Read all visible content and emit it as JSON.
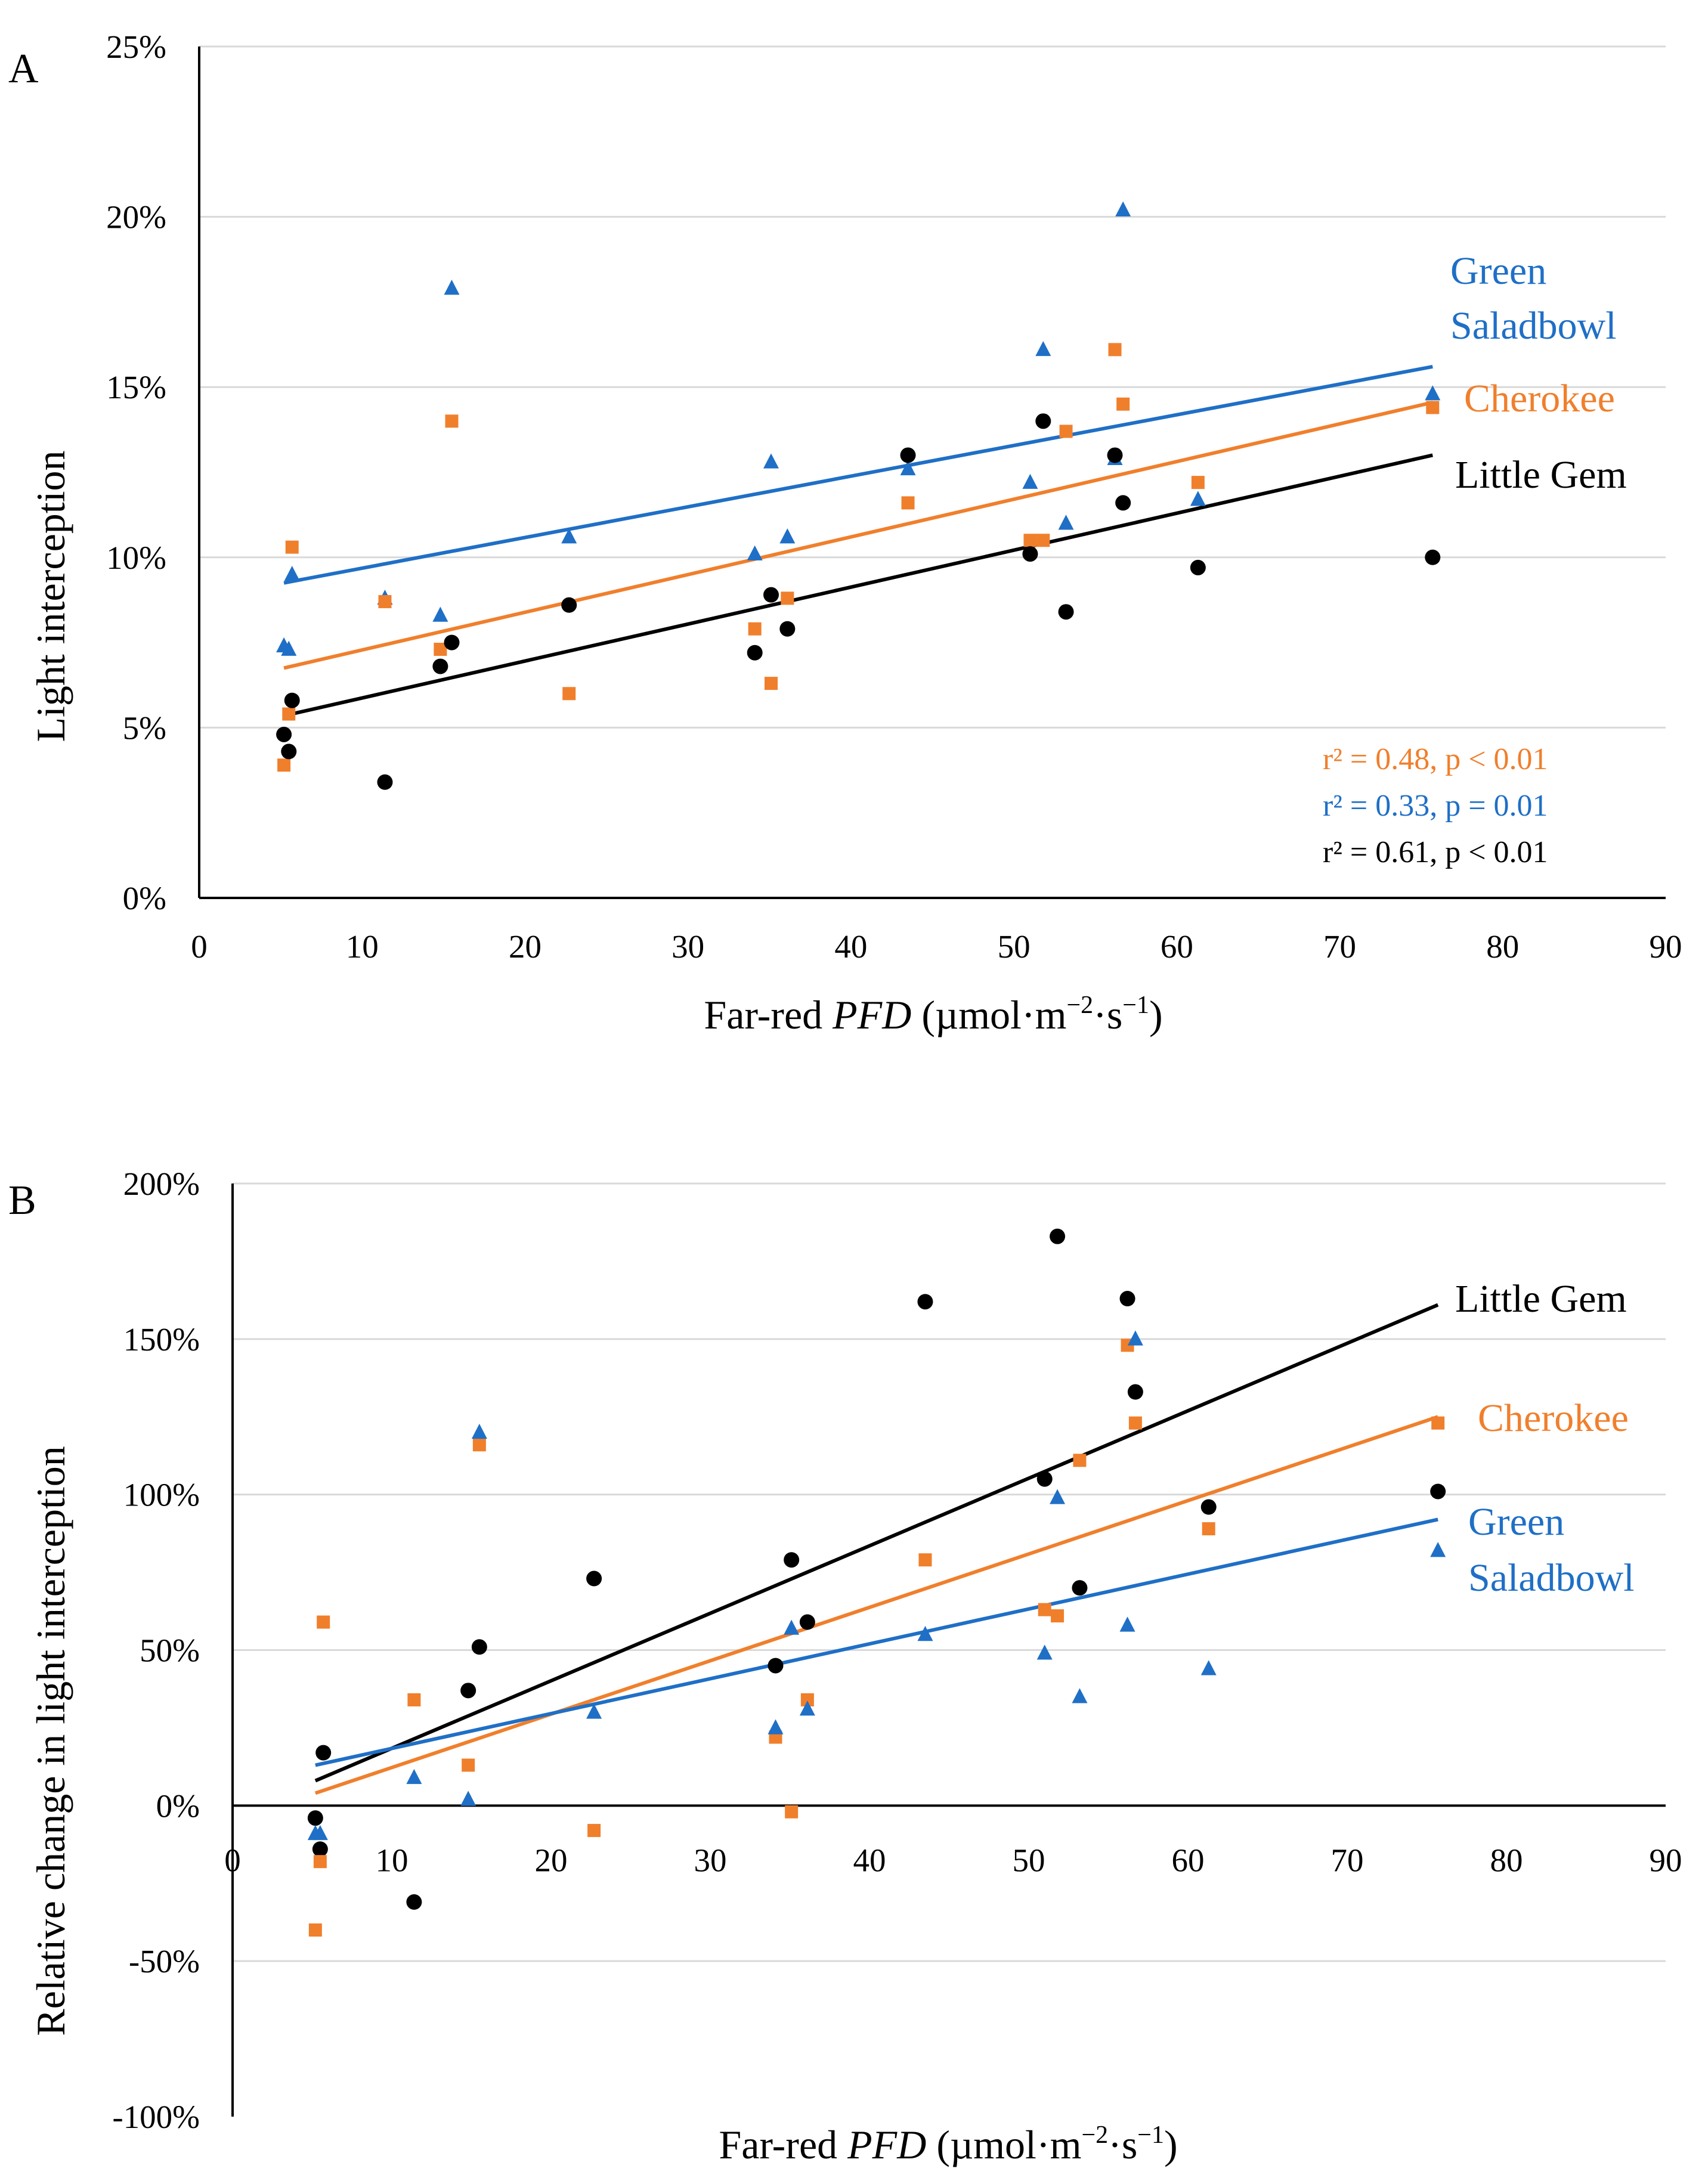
{
  "chart_data": [
    {
      "panel": "A",
      "type": "scatter",
      "xlabel": "Far-red PFD (µmol·m⁻²·s⁻¹)",
      "xlabel_parts": {
        "prefix": "Far-red ",
        "italic": "PFD",
        "units": " (µmol·m",
        "exp1": "−2",
        "mid": "·s",
        "exp2": "−1",
        "close": ")"
      },
      "ylabel": "Light interception",
      "xlim": [
        0,
        90
      ],
      "ylim": [
        0,
        0.25
      ],
      "x_ticks": [
        "0",
        "10",
        "20",
        "30",
        "40",
        "50",
        "60",
        "70",
        "80",
        "90"
      ],
      "x_tick_values": [
        0,
        10,
        20,
        30,
        40,
        50,
        60,
        70,
        80,
        90
      ],
      "y_ticks": [
        "0%",
        "5%",
        "10%",
        "15%",
        "20%",
        "25%"
      ],
      "y_tick_values": [
        0,
        0.05,
        0.1,
        0.15,
        0.2,
        0.25
      ],
      "grid": true,
      "x_label_row": "bottom",
      "series": [
        {
          "name": "Green Saladbowl",
          "label_lines": [
            "Green",
            "Saladbowl"
          ],
          "color": "#1f6fc6",
          "marker": "triangle",
          "points": [
            [
              5.2,
              0.074
            ],
            [
              5.5,
              0.073
            ],
            [
              5.7,
              0.095
            ],
            [
              11.4,
              0.088
            ],
            [
              14.8,
              0.083
            ],
            [
              15.5,
              0.179
            ],
            [
              22.7,
              0.106
            ],
            [
              34.1,
              0.101
            ],
            [
              35.1,
              0.128
            ],
            [
              36.1,
              0.106
            ],
            [
              43.5,
              0.126
            ],
            [
              51.0,
              0.122
            ],
            [
              51.8,
              0.161
            ],
            [
              53.2,
              0.11
            ],
            [
              56.2,
              0.129
            ],
            [
              56.7,
              0.202
            ],
            [
              61.3,
              0.117
            ],
            [
              75.7,
              0.148
            ]
          ],
          "trend": {
            "x": [
              5.2,
              75.7
            ],
            "y": [
              0.0925,
              0.156
            ]
          },
          "stat": "r² = 0.33, p = 0.01"
        },
        {
          "name": "Cherokee",
          "label_lines": [
            "Cherokee"
          ],
          "color": "#f07f2c",
          "marker": "square",
          "points": [
            [
              5.2,
              0.039
            ],
            [
              5.5,
              0.054
            ],
            [
              5.7,
              0.103
            ],
            [
              11.4,
              0.087
            ],
            [
              14.8,
              0.073
            ],
            [
              15.5,
              0.14
            ],
            [
              22.7,
              0.06
            ],
            [
              34.1,
              0.079
            ],
            [
              35.1,
              0.063
            ],
            [
              36.1,
              0.088
            ],
            [
              43.5,
              0.116
            ],
            [
              51.0,
              0.105
            ],
            [
              51.8,
              0.105
            ],
            [
              53.2,
              0.137
            ],
            [
              56.2,
              0.161
            ],
            [
              56.7,
              0.145
            ],
            [
              61.3,
              0.122
            ],
            [
              75.7,
              0.144
            ]
          ],
          "trend": {
            "x": [
              5.2,
              75.7
            ],
            "y": [
              0.0675,
              0.1455
            ]
          },
          "stat": "r² = 0.48, p < 0.01"
        },
        {
          "name": "Little Gem",
          "label_lines": [
            "Little Gem"
          ],
          "color": "#000000",
          "marker": "circle",
          "points": [
            [
              5.2,
              0.048
            ],
            [
              5.5,
              0.043
            ],
            [
              5.7,
              0.058
            ],
            [
              11.4,
              0.034
            ],
            [
              14.8,
              0.068
            ],
            [
              15.5,
              0.075
            ],
            [
              22.7,
              0.086
            ],
            [
              34.1,
              0.072
            ],
            [
              35.1,
              0.089
            ],
            [
              36.1,
              0.079
            ],
            [
              43.5,
              0.13
            ],
            [
              51.0,
              0.101
            ],
            [
              51.8,
              0.14
            ],
            [
              53.2,
              0.084
            ],
            [
              56.2,
              0.13
            ],
            [
              56.7,
              0.116
            ],
            [
              61.3,
              0.097
            ],
            [
              75.7,
              0.1
            ]
          ],
          "trend": {
            "x": [
              5.2,
              75.7
            ],
            "y": [
              0.0535,
              0.13
            ]
          },
          "stat": "r² = 0.61, p < 0.01"
        }
      ]
    },
    {
      "panel": "B",
      "type": "scatter",
      "xlabel": "Far-red PFD (µmol·m⁻²·s⁻¹)",
      "xlabel_parts": {
        "prefix": "Far-red ",
        "italic": "PFD",
        "units": " (µmol·m",
        "exp1": "−2",
        "mid": "·s",
        "exp2": "−1",
        "close": ")"
      },
      "ylabel": "Relative change in light interception",
      "xlim": [
        0,
        90
      ],
      "ylim": [
        -1.0,
        2.0
      ],
      "x_ticks": [
        "0",
        "10",
        "20",
        "30",
        "40",
        "50",
        "60",
        "70",
        "80",
        "90"
      ],
      "x_tick_values": [
        0,
        10,
        20,
        30,
        40,
        50,
        60,
        70,
        80,
        90
      ],
      "y_ticks": [
        "-100%",
        "-50%",
        "0%",
        "50%",
        "100%",
        "150%",
        "200%"
      ],
      "y_tick_values": [
        -1.0,
        -0.5,
        0,
        0.5,
        1.0,
        1.5,
        2.0
      ],
      "grid": true,
      "x_label_row": "at zero line",
      "series": [
        {
          "name": "Little Gem",
          "label_lines": [
            "Little Gem"
          ],
          "color": "#000000",
          "marker": "circle",
          "points": [
            [
              5.2,
              -0.04
            ],
            [
              5.5,
              -0.14
            ],
            [
              5.7,
              0.17
            ],
            [
              11.4,
              -0.31
            ],
            [
              14.8,
              0.37
            ],
            [
              15.5,
              0.51
            ],
            [
              22.7,
              0.73
            ],
            [
              34.1,
              0.45
            ],
            [
              35.1,
              0.79
            ],
            [
              36.1,
              0.59
            ],
            [
              43.5,
              1.62
            ],
            [
              51.0,
              1.05
            ],
            [
              51.8,
              1.83
            ],
            [
              53.2,
              0.7
            ],
            [
              56.2,
              1.63
            ],
            [
              56.7,
              1.33
            ],
            [
              61.3,
              0.96
            ],
            [
              75.7,
              1.01
            ]
          ],
          "trend": {
            "x": [
              5.2,
              75.7
            ],
            "y": [
              0.08,
              1.61
            ]
          }
        },
        {
          "name": "Cherokee",
          "label_lines": [
            "Cherokee"
          ],
          "color": "#f07f2c",
          "marker": "square",
          "points": [
            [
              5.2,
              -0.4
            ],
            [
              5.5,
              -0.18
            ],
            [
              5.7,
              0.59
            ],
            [
              11.4,
              0.34
            ],
            [
              14.8,
              0.13
            ],
            [
              15.5,
              1.16
            ],
            [
              22.7,
              -0.08
            ],
            [
              34.1,
              0.22
            ],
            [
              35.1,
              -0.02
            ],
            [
              36.1,
              0.34
            ],
            [
              43.5,
              0.79
            ],
            [
              51.0,
              0.63
            ],
            [
              51.8,
              0.61
            ],
            [
              53.2,
              1.11
            ],
            [
              56.2,
              1.48
            ],
            [
              56.7,
              1.23
            ],
            [
              61.3,
              0.89
            ],
            [
              75.7,
              1.23
            ]
          ],
          "trend": {
            "x": [
              5.2,
              75.7
            ],
            "y": [
              0.04,
              1.25
            ]
          }
        },
        {
          "name": "Green Saladbowl",
          "label_lines": [
            "Green",
            "Saladbowl"
          ],
          "color": "#1f6fc6",
          "marker": "triangle",
          "points": [
            [
              5.2,
              -0.09
            ],
            [
              5.5,
              -0.09
            ],
            [
              11.4,
              0.09
            ],
            [
              14.8,
              0.02
            ],
            [
              15.5,
              1.2
            ],
            [
              22.7,
              0.3
            ],
            [
              34.1,
              0.25
            ],
            [
              35.1,
              0.57
            ],
            [
              36.1,
              0.31
            ],
            [
              43.5,
              0.55
            ],
            [
              51.0,
              0.49
            ],
            [
              51.8,
              0.99
            ],
            [
              53.2,
              0.35
            ],
            [
              56.2,
              0.58
            ],
            [
              56.7,
              1.5
            ],
            [
              61.3,
              0.44
            ],
            [
              75.7,
              0.82
            ]
          ],
          "trend": {
            "x": [
              5.2,
              75.7
            ],
            "y": [
              0.13,
              0.92
            ]
          }
        }
      ]
    }
  ]
}
